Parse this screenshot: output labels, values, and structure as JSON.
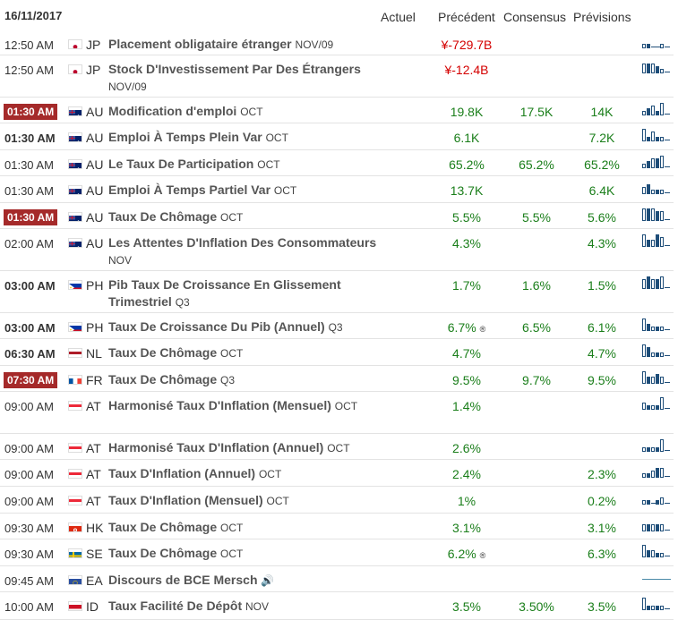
{
  "header": {
    "date": "16/11/2017",
    "actual": "Actuel",
    "previous": "Précédent",
    "consensus": "Consensus",
    "forecast": "Prévisions"
  },
  "rows": [
    {
      "time": "12:50 AM",
      "style": "normal",
      "flag": "jp",
      "country": "JP",
      "event": "Placement obligataire étranger",
      "period": "NOV/09",
      "previous": "¥-729.7B",
      "prev_color": "red",
      "consensus": "",
      "forecast": "",
      "spark": [
        1,
        1,
        0,
        0,
        1,
        0
      ]
    },
    {
      "time": "12:50 AM",
      "style": "normal",
      "flag": "jp",
      "country": "JP",
      "event": "Stock D'Investissement Par Des Étrangers",
      "period": "NOV/09",
      "previous": "¥-12.4B",
      "prev_color": "red",
      "consensus": "",
      "forecast": "",
      "spark": [
        3,
        3,
        3,
        2,
        1,
        0
      ]
    },
    {
      "time": "01:30 AM",
      "style": "tag",
      "flag": "au",
      "country": "AU",
      "event": "Modification d'emploi",
      "period": "OCT",
      "previous": "19.8K",
      "consensus": "17.5K",
      "forecast": "14K",
      "spark": [
        1,
        2,
        3,
        1,
        4,
        0
      ]
    },
    {
      "time": "01:30 AM",
      "style": "bold",
      "flag": "au",
      "country": "AU",
      "event": "Emploi À Temps Plein Var",
      "period": "OCT",
      "previous": "6.1K",
      "consensus": "",
      "forecast": "7.2K",
      "spark": [
        4,
        1,
        3,
        1,
        1,
        0
      ]
    },
    {
      "time": "01:30 AM",
      "style": "normal",
      "flag": "au",
      "country": "AU",
      "event": "Le Taux De Participation",
      "period": "OCT",
      "previous": "65.2%",
      "consensus": "65.2%",
      "forecast": "65.2%",
      "spark": [
        1,
        2,
        3,
        3,
        4,
        0
      ]
    },
    {
      "time": "01:30 AM",
      "style": "normal",
      "flag": "au",
      "country": "AU",
      "event": "Emploi À Temps Partiel Var",
      "period": "OCT",
      "previous": "13.7K",
      "consensus": "",
      "forecast": "6.4K",
      "spark": [
        2,
        3,
        1,
        1,
        1,
        0
      ]
    },
    {
      "time": "01:30 AM",
      "style": "tag",
      "flag": "au",
      "country": "AU",
      "event": "Taux De Chômage",
      "period": "OCT",
      "previous": "5.5%",
      "consensus": "5.5%",
      "forecast": "5.6%",
      "spark": [
        4,
        4,
        4,
        3,
        3,
        0
      ]
    },
    {
      "time": "02:00 AM",
      "style": "normal",
      "flag": "au",
      "country": "AU",
      "event": "Les Attentes D'Inflation Des Consommateurs",
      "period": "NOV",
      "previous": "4.3%",
      "consensus": "",
      "forecast": "4.3%",
      "spark": [
        4,
        2,
        2,
        4,
        3,
        0
      ]
    },
    {
      "time": "03:00 AM",
      "style": "bold",
      "flag": "ph",
      "country": "PH",
      "event": "Pib Taux De Croissance En Glissement Trimestriel",
      "period": "Q3",
      "previous": "1.7%",
      "consensus": "1.6%",
      "forecast": "1.5%",
      "spark": [
        3,
        4,
        3,
        3,
        4,
        0
      ]
    },
    {
      "time": "03:00 AM",
      "style": "bold",
      "flag": "ph",
      "country": "PH",
      "event": "Taux De Croissance Du Pib (Annuel)",
      "period": "Q3",
      "previous": "6.7%",
      "prev_rev": "®",
      "consensus": "6.5%",
      "forecast": "6.1%",
      "spark": [
        4,
        2,
        1,
        1,
        1,
        0
      ]
    },
    {
      "time": "06:30 AM",
      "style": "bold",
      "flag": "nl",
      "country": "NL",
      "event": "Taux De Chômage",
      "period": "OCT",
      "previous": "4.7%",
      "consensus": "",
      "forecast": "4.7%",
      "spark": [
        4,
        3,
        1,
        1,
        1,
        0
      ]
    },
    {
      "time": "07:30 AM",
      "style": "tag",
      "flag": "fr",
      "country": "FR",
      "event": "Taux De Chômage",
      "period": "Q3",
      "previous": "9.5%",
      "consensus": "9.7%",
      "forecast": "9.5%",
      "spark": [
        4,
        2,
        2,
        3,
        2,
        0
      ]
    },
    {
      "time": "09:00 AM",
      "style": "normal",
      "flag": "at",
      "country": "AT",
      "event": "Harmonisé Taux D'Inflation (Mensuel)",
      "period": "OCT",
      "previous": "1.4%",
      "consensus": "",
      "forecast": "",
      "spark": [
        2,
        1,
        1,
        1,
        4,
        0
      ]
    },
    {
      "time": "09:00 AM",
      "style": "normal",
      "flag": "at",
      "country": "AT",
      "event": "Harmonisé Taux D'Inflation (Annuel)",
      "period": "OCT",
      "previous": "2.6%",
      "consensus": "",
      "forecast": "",
      "spark": [
        1,
        1,
        1,
        1,
        4,
        0
      ]
    },
    {
      "time": "09:00 AM",
      "style": "normal",
      "flag": "at",
      "country": "AT",
      "event": "Taux D'Inflation (Annuel)",
      "period": "OCT",
      "previous": "2.4%",
      "consensus": "",
      "forecast": "2.3%",
      "spark": [
        1,
        1,
        2,
        3,
        3,
        0
      ]
    },
    {
      "time": "09:00 AM",
      "style": "normal",
      "flag": "at",
      "country": "AT",
      "event": "Taux D'Inflation (Mensuel)",
      "period": "OCT",
      "previous": "1%",
      "consensus": "",
      "forecast": "0.2%",
      "spark": [
        1,
        1,
        0,
        1,
        2,
        0
      ]
    },
    {
      "time": "09:30 AM",
      "style": "normal",
      "flag": "hk",
      "country": "HK",
      "event": "Taux De Chômage",
      "period": "OCT",
      "previous": "3.1%",
      "consensus": "",
      "forecast": "3.1%",
      "spark": [
        2,
        2,
        2,
        2,
        2,
        0
      ]
    },
    {
      "time": "09:30 AM",
      "style": "normal",
      "flag": "se",
      "country": "SE",
      "event": "Taux De Chômage",
      "period": "OCT",
      "previous": "6.2%",
      "prev_rev": "®",
      "consensus": "",
      "forecast": "6.3%",
      "spark": [
        4,
        2,
        2,
        1,
        1,
        0
      ]
    },
    {
      "time": "09:45 AM",
      "style": "normal",
      "flag": "eu",
      "country": "EA",
      "event": "Discours de BCE Mersch",
      "period": "",
      "speaker": "🔊",
      "previous": "",
      "consensus": "",
      "forecast": "",
      "spark": "line"
    },
    {
      "time": "10:00 AM",
      "style": "normal",
      "flag": "id",
      "country": "ID",
      "event": "Taux Facilité De Dépôt",
      "period": "NOV",
      "previous": "3.5%",
      "consensus": "3.50%",
      "forecast": "3.5%",
      "spark": [
        4,
        1,
        1,
        1,
        1,
        0
      ]
    }
  ]
}
